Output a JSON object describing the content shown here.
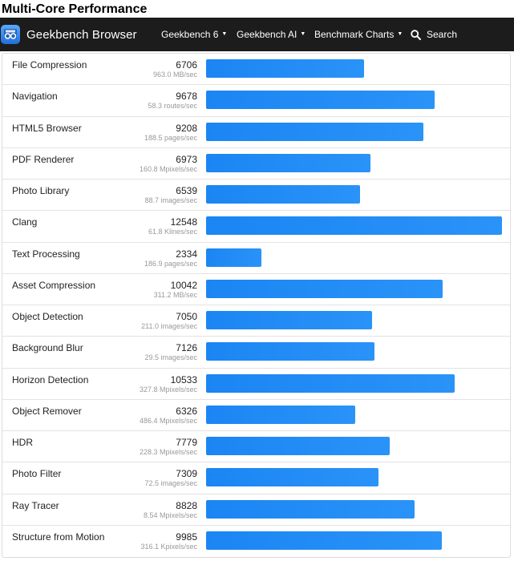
{
  "page": {
    "title": "Multi-Core Performance"
  },
  "navbar": {
    "brand": "Geekbench Browser",
    "items": [
      {
        "label": "Geekbench 6",
        "caret": "▼"
      },
      {
        "label": "Geekbench AI",
        "caret": "▼"
      },
      {
        "label": "Benchmark Charts",
        "caret": "▼"
      }
    ],
    "search_label": "Search"
  },
  "accent_color": "#1b85f3",
  "max_score": 12548,
  "rows": [
    {
      "name": "File Compression",
      "score": "6706",
      "rate": "963.0 MB/sec",
      "value": 6706
    },
    {
      "name": "Navigation",
      "score": "9678",
      "rate": "58.3 routes/sec",
      "value": 9678
    },
    {
      "name": "HTML5 Browser",
      "score": "9208",
      "rate": "188.5 pages/sec",
      "value": 9208
    },
    {
      "name": "PDF Renderer",
      "score": "6973",
      "rate": "160.8 Mpixels/sec",
      "value": 6973
    },
    {
      "name": "Photo Library",
      "score": "6539",
      "rate": "88.7 images/sec",
      "value": 6539
    },
    {
      "name": "Clang",
      "score": "12548",
      "rate": "61.8 Klines/sec",
      "value": 12548
    },
    {
      "name": "Text Processing",
      "score": "2334",
      "rate": "186.9 pages/sec",
      "value": 2334
    },
    {
      "name": "Asset Compression",
      "score": "10042",
      "rate": "311.2 MB/sec",
      "value": 10042
    },
    {
      "name": "Object Detection",
      "score": "7050",
      "rate": "211.0 images/sec",
      "value": 7050
    },
    {
      "name": "Background Blur",
      "score": "7126",
      "rate": "29.5 images/sec",
      "value": 7126
    },
    {
      "name": "Horizon Detection",
      "score": "10533",
      "rate": "327.8 Mpixels/sec",
      "value": 10533
    },
    {
      "name": "Object Remover",
      "score": "6326",
      "rate": "486.4 Mpixels/sec",
      "value": 6326
    },
    {
      "name": "HDR",
      "score": "7779",
      "rate": "228.3 Mpixels/sec",
      "value": 7779
    },
    {
      "name": "Photo Filter",
      "score": "7309",
      "rate": "72.5 images/sec",
      "value": 7309
    },
    {
      "name": "Ray Tracer",
      "score": "8828",
      "rate": "8.54 Mpixels/sec",
      "value": 8828
    },
    {
      "name": "Structure from Motion",
      "score": "9985",
      "rate": "316.1 Kpixels/sec",
      "value": 9985
    }
  ]
}
